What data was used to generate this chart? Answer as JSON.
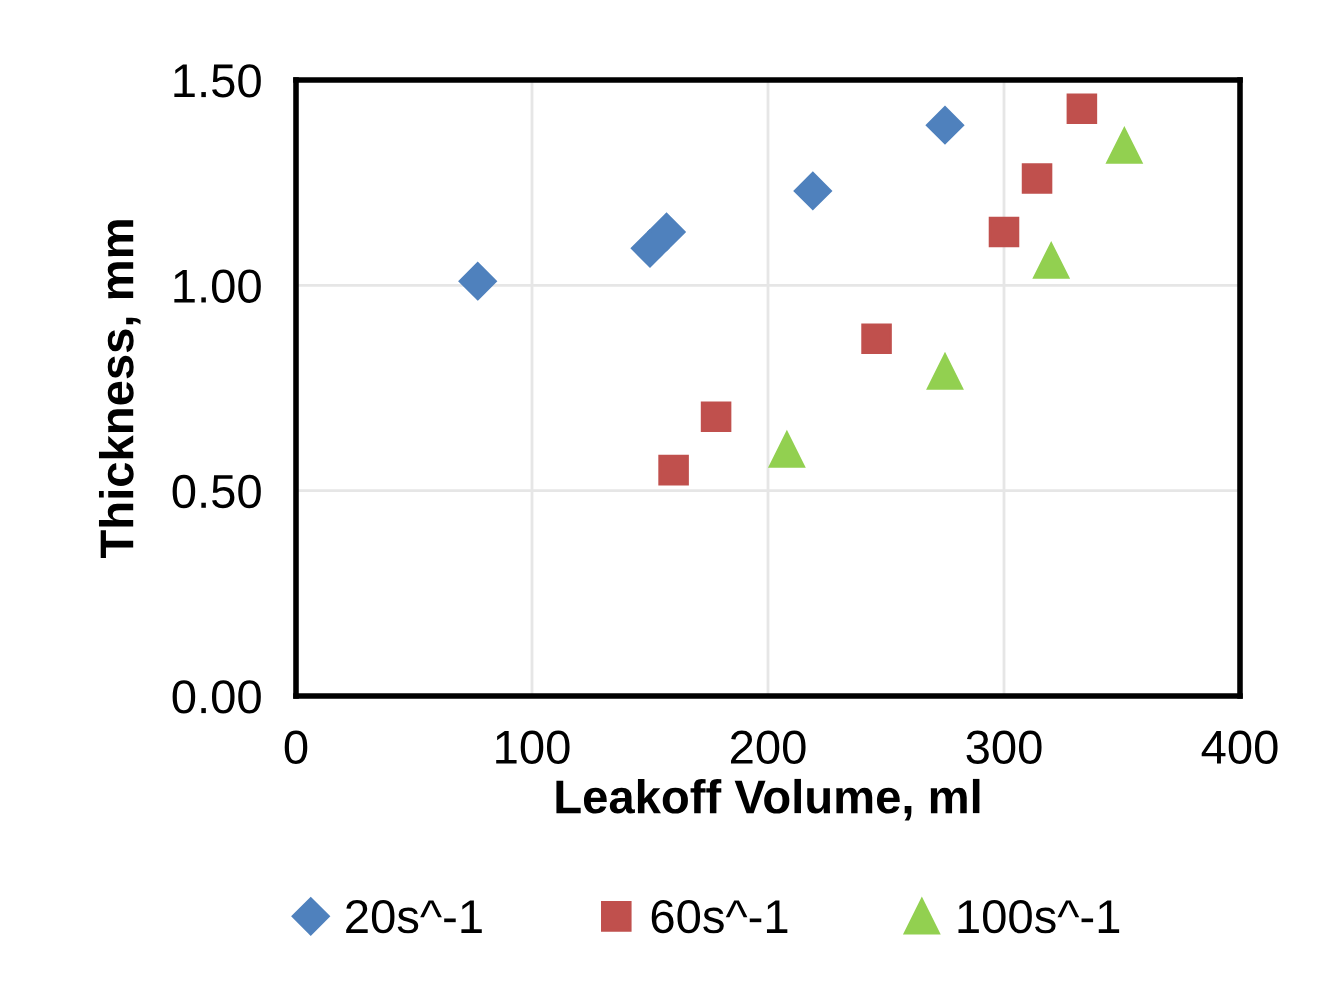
{
  "chart_data": {
    "type": "scatter",
    "xlabel": "Leakoff Volume, ml",
    "ylabel": "Thickness, mm",
    "xlim": [
      0,
      400
    ],
    "xticks": [
      0,
      100,
      200,
      300,
      400
    ],
    "ylim": [
      0,
      1.5
    ],
    "yticks": [
      {
        "value": 0,
        "label": "0.00"
      },
      {
        "value": 0.5,
        "label": "0.50"
      },
      {
        "value": 1.0,
        "label": "1.00"
      },
      {
        "value": 1.5,
        "label": "1.50"
      }
    ],
    "grid": true,
    "legend": "bottom",
    "series": [
      {
        "name": "20s^-1",
        "color": "#4f81bd",
        "marker": "diamond",
        "x": [
          77,
          150,
          157,
          219,
          275
        ],
        "values": [
          1.01,
          1.09,
          1.13,
          1.23,
          1.39
        ]
      },
      {
        "name": "60s^-1",
        "color": "#c0504d",
        "marker": "square",
        "x": [
          160,
          178,
          246,
          300,
          314,
          333
        ],
        "values": [
          0.55,
          0.68,
          0.87,
          1.13,
          1.26,
          1.43
        ]
      },
      {
        "name": "100s^-1",
        "color": "#92d050",
        "marker": "triangle",
        "x": [
          208,
          275,
          320,
          351
        ],
        "values": [
          0.6,
          0.79,
          1.06,
          1.34
        ]
      }
    ]
  }
}
